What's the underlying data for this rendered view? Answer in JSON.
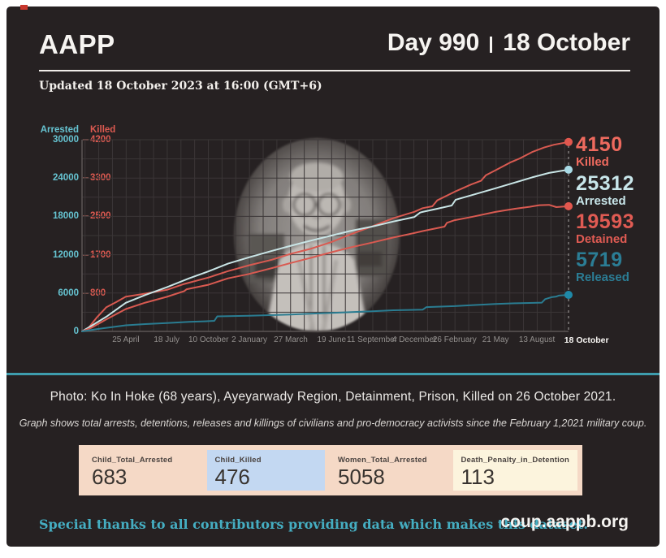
{
  "header": {
    "brand": "AAPP",
    "day_label": "Day 990",
    "date_label": "18 October",
    "updated": "Updated 18 October 2023 at 16:00 (GMT+6)"
  },
  "chart_data": {
    "type": "line",
    "left_axis": {
      "title": "Arrested",
      "ticks": [
        "30000",
        "24000",
        "18000",
        "12000",
        "6000",
        "0"
      ],
      "max": 30000
    },
    "right_axis": {
      "title": "Killed",
      "ticks": [
        "4200",
        "3300",
        "2500",
        "1700",
        "800"
      ],
      "max": 4200
    },
    "x_ticks": [
      {
        "label": "25 April",
        "t": 0.09
      },
      {
        "label": "18 July",
        "t": 0.174
      },
      {
        "label": "10 October",
        "t": 0.26
      },
      {
        "label": "2 January",
        "t": 0.344
      },
      {
        "label": "27 March",
        "t": 0.429
      },
      {
        "label": "19 June",
        "t": 0.513
      },
      {
        "label": "11 September",
        "t": 0.596
      },
      {
        "label": "4 December",
        "t": 0.683
      },
      {
        "label": "26 February",
        "t": 0.766
      },
      {
        "label": "21 May",
        "t": 0.85
      },
      {
        "label": "13 August",
        "t": 0.935
      },
      {
        "label": "18 October",
        "t": 1.037,
        "current": true
      }
    ],
    "grid": {
      "h_lines": 11,
      "v_lines": 36
    },
    "series": [
      {
        "name": "Killed",
        "axis": "right",
        "color": "#d95a51",
        "dot_color": "#e2574e",
        "end_label": {
          "value": "4150",
          "label": "Killed",
          "color": "#ee6a5e"
        },
        "points": [
          [
            0,
            0
          ],
          [
            0.012,
            60
          ],
          [
            0.03,
            300
          ],
          [
            0.05,
            530
          ],
          [
            0.07,
            640
          ],
          [
            0.09,
            760
          ],
          [
            0.12,
            810
          ],
          [
            0.174,
            910
          ],
          [
            0.21,
            1040
          ],
          [
            0.26,
            1180
          ],
          [
            0.3,
            1320
          ],
          [
            0.344,
            1450
          ],
          [
            0.39,
            1570
          ],
          [
            0.429,
            1700
          ],
          [
            0.47,
            1810
          ],
          [
            0.513,
            1960
          ],
          [
            0.55,
            2120
          ],
          [
            0.596,
            2300
          ],
          [
            0.64,
            2480
          ],
          [
            0.683,
            2620
          ],
          [
            0.7,
            2700
          ],
          [
            0.72,
            2740
          ],
          [
            0.73,
            2870
          ],
          [
            0.766,
            3060
          ],
          [
            0.8,
            3220
          ],
          [
            0.82,
            3300
          ],
          [
            0.83,
            3420
          ],
          [
            0.85,
            3530
          ],
          [
            0.88,
            3700
          ],
          [
            0.9,
            3790
          ],
          [
            0.925,
            3930
          ],
          [
            0.95,
            4030
          ],
          [
            0.97,
            4090
          ],
          [
            1,
            4150
          ]
        ]
      },
      {
        "name": "Arrested",
        "axis": "left",
        "color": "#c9e5e6",
        "dot_color": "#a9dbe6",
        "end_label": {
          "value": "25312",
          "label": "Arrested",
          "color": "#c8e6ea"
        },
        "points": [
          [
            0,
            0
          ],
          [
            0.02,
            900
          ],
          [
            0.05,
            2300
          ],
          [
            0.09,
            4480
          ],
          [
            0.13,
            5700
          ],
          [
            0.174,
            6900
          ],
          [
            0.22,
            8300
          ],
          [
            0.26,
            9400
          ],
          [
            0.3,
            10600
          ],
          [
            0.344,
            11600
          ],
          [
            0.39,
            12600
          ],
          [
            0.429,
            13400
          ],
          [
            0.47,
            14200
          ],
          [
            0.513,
            15000
          ],
          [
            0.55,
            15700
          ],
          [
            0.596,
            16400
          ],
          [
            0.64,
            17200
          ],
          [
            0.683,
            17900
          ],
          [
            0.695,
            18600
          ],
          [
            0.7,
            18700
          ],
          [
            0.73,
            19200
          ],
          [
            0.76,
            19700
          ],
          [
            0.768,
            20600
          ],
          [
            0.8,
            21300
          ],
          [
            0.85,
            22400
          ],
          [
            0.89,
            23300
          ],
          [
            0.925,
            24100
          ],
          [
            0.96,
            24800
          ],
          [
            1,
            25312
          ]
        ]
      },
      {
        "name": "Detained",
        "axis": "left",
        "color": "#d95a51",
        "dot_color": "#e2574e",
        "end_label": {
          "value": "19593",
          "label": "Detained",
          "color": "#e05b53"
        },
        "points": [
          [
            0,
            0
          ],
          [
            0.02,
            600
          ],
          [
            0.05,
            1900
          ],
          [
            0.09,
            3500
          ],
          [
            0.13,
            4500
          ],
          [
            0.174,
            5400
          ],
          [
            0.21,
            6300
          ],
          [
            0.215,
            6600
          ],
          [
            0.26,
            7300
          ],
          [
            0.3,
            8300
          ],
          [
            0.344,
            9000
          ],
          [
            0.39,
            9900
          ],
          [
            0.429,
            10700
          ],
          [
            0.47,
            11500
          ],
          [
            0.513,
            12400
          ],
          [
            0.55,
            13100
          ],
          [
            0.596,
            13900
          ],
          [
            0.64,
            14700
          ],
          [
            0.683,
            15400
          ],
          [
            0.7,
            15700
          ],
          [
            0.745,
            16400
          ],
          [
            0.75,
            17000
          ],
          [
            0.766,
            17400
          ],
          [
            0.8,
            17900
          ],
          [
            0.85,
            18700
          ],
          [
            0.89,
            19200
          ],
          [
            0.92,
            19500
          ],
          [
            0.94,
            19750
          ],
          [
            0.96,
            19800
          ],
          [
            0.975,
            19450
          ],
          [
            1,
            19593
          ]
        ]
      },
      {
        "name": "Released",
        "axis": "left",
        "color": "#2a7c91",
        "dot_color": "#1f89a8",
        "end_label": {
          "value": "5719",
          "label": "Released",
          "color": "#2b7d95"
        },
        "points": [
          [
            0,
            0
          ],
          [
            0.03,
            350
          ],
          [
            0.06,
            650
          ],
          [
            0.09,
            950
          ],
          [
            0.13,
            1150
          ],
          [
            0.174,
            1300
          ],
          [
            0.22,
            1500
          ],
          [
            0.26,
            1600
          ],
          [
            0.272,
            1650
          ],
          [
            0.278,
            2350
          ],
          [
            0.344,
            2450
          ],
          [
            0.429,
            2650
          ],
          [
            0.513,
            2900
          ],
          [
            0.596,
            3150
          ],
          [
            0.64,
            3300
          ],
          [
            0.7,
            3400
          ],
          [
            0.708,
            3800
          ],
          [
            0.766,
            3950
          ],
          [
            0.8,
            4100
          ],
          [
            0.85,
            4300
          ],
          [
            0.89,
            4400
          ],
          [
            0.92,
            4450
          ],
          [
            0.945,
            4500
          ],
          [
            0.952,
            5050
          ],
          [
            0.965,
            5350
          ],
          [
            0.975,
            5450
          ],
          [
            0.98,
            5600
          ],
          [
            1,
            5719
          ]
        ]
      }
    ],
    "title": "",
    "xlabel": "",
    "ylabel_left": "Arrested",
    "ylabel_right": "Killed"
  },
  "caption": "Photo: Ko In Hoke (68 years), Ayeyarwady Region, Detainment, Prison, Killed on 26 October 2021.",
  "note": "Graph shows total arrests, detentions, releases and killings of civilians and pro-democracy activists since the February 1,2021 military coup.",
  "stats": [
    {
      "label": "Child_Total_Arrested",
      "value": "683",
      "bg": "#f5d9c6"
    },
    {
      "label": "Child_Killed",
      "value": "476",
      "bg": "#c3d8f2"
    },
    {
      "label": "Women_Total_Arrested",
      "value": "5058",
      "bg": "#f5d9c6"
    },
    {
      "label": "Death_Penalty_in_Detention",
      "value": "113",
      "bg": "#fcf4dd"
    }
  ],
  "footer": {
    "thanks": "Special thanks to all contributors providing data which makes this dataset.",
    "site": "coup.aappb.org"
  },
  "colors": {
    "panel_bg": "#262122",
    "accent_teal": "#3e9dae",
    "accent_salmon": "#dd5a51",
    "text_white": "#f6f4f1"
  }
}
